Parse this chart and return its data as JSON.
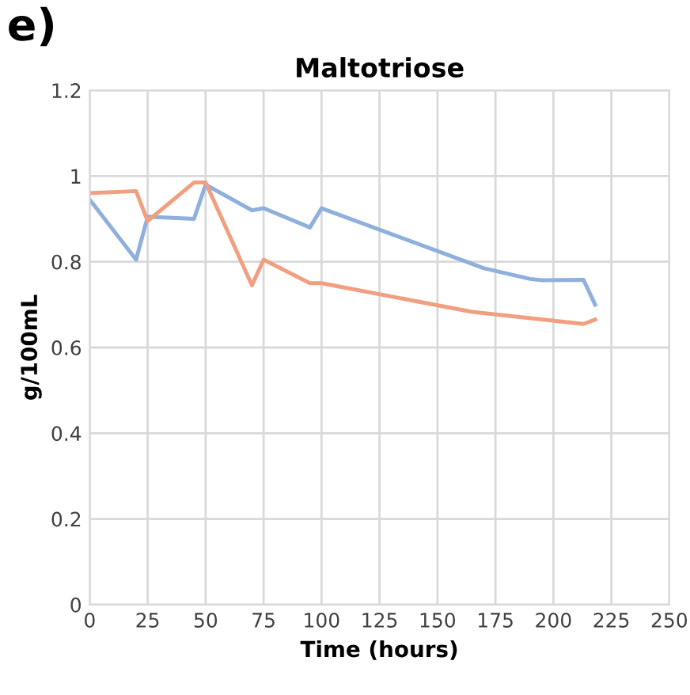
{
  "chart_data": {
    "type": "line",
    "title": "Maltotriose",
    "xlabel": "Time (hours)",
    "ylabel": "g/100mL",
    "annotations": [
      "e)"
    ],
    "xlim": [
      0,
      250
    ],
    "xticks": [
      0,
      25,
      50,
      75,
      100,
      125,
      150,
      175,
      200,
      225,
      250
    ],
    "ylim": [
      0,
      1.2
    ],
    "yticks": [
      0,
      0.2,
      0.4,
      0.6,
      0.8,
      1,
      1.2
    ],
    "grid": true,
    "series": [
      {
        "color": "#8fb0dc",
        "x": [
          0,
          20,
          25,
          45,
          50,
          70,
          75,
          95,
          100,
          165,
          170,
          190,
          195,
          213,
          218
        ],
        "values": [
          0.945,
          0.805,
          0.905,
          0.9,
          0.98,
          0.92,
          0.925,
          0.88,
          0.925,
          0.795,
          0.785,
          0.76,
          0.757,
          0.758,
          0.7
        ]
      },
      {
        "color": "#f0a080",
        "x": [
          0,
          20,
          25,
          45,
          50,
          70,
          75,
          95,
          100,
          165,
          213,
          218
        ],
        "values": [
          0.96,
          0.965,
          0.895,
          0.985,
          0.985,
          0.745,
          0.805,
          0.75,
          0.75,
          0.683,
          0.655,
          0.665
        ]
      }
    ]
  }
}
